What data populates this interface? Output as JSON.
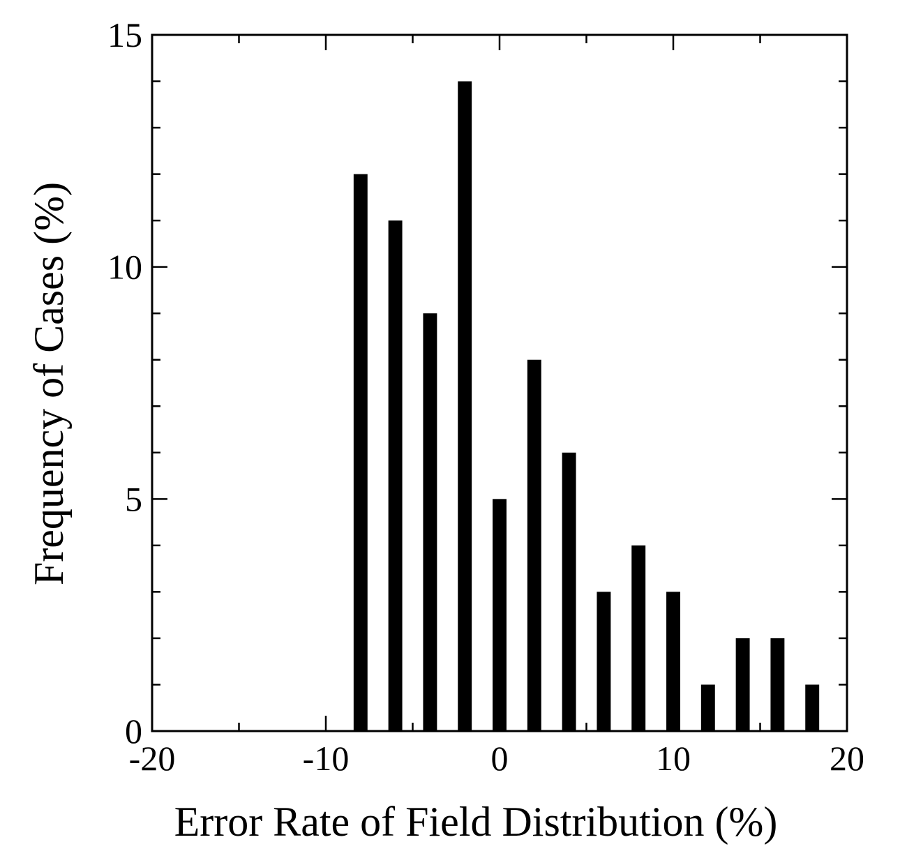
{
  "chart_data": {
    "type": "bar",
    "title": "",
    "xlabel": "Error Rate of Field Distribution (%)",
    "ylabel": "Frequency of Cases (%)",
    "xlim": [
      -20,
      20
    ],
    "ylim": [
      0,
      15
    ],
    "x_ticks": [
      -20,
      -10,
      0,
      10,
      20
    ],
    "x_tick_labels": [
      "-20",
      "-10",
      "0",
      "10",
      "20"
    ],
    "y_ticks": [
      0,
      5,
      10,
      15
    ],
    "y_tick_labels": [
      "0",
      "5",
      "10",
      "15"
    ],
    "x_minor_step": 5,
    "y_minor_step": 1,
    "grid": false,
    "legend": "none",
    "bar_color": "#000000",
    "bar_width": 0.8,
    "x": [
      -8,
      -6,
      -4,
      -2,
      0,
      2,
      4,
      6,
      8,
      10,
      12,
      14,
      16,
      18
    ],
    "values": [
      12,
      11,
      9,
      14,
      5,
      8,
      6,
      3,
      4,
      3,
      1,
      2,
      2,
      1
    ]
  }
}
